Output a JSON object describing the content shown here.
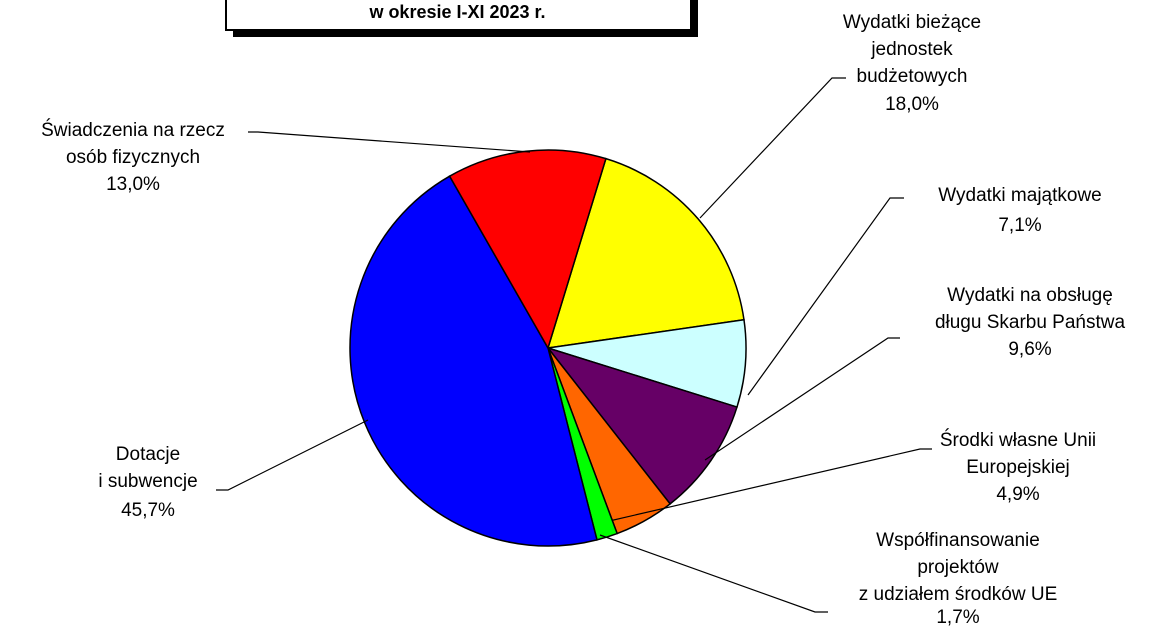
{
  "chart_data": {
    "type": "pie",
    "title": "w okresie I-XI 2023 r.",
    "categories": [
      "Wydatki bieżące\njednostek\nbudżetowych",
      "Wydatki majątkowe",
      "Wydatki na obsługę\ndługu Skarbu Państwa",
      "Środki własne Unii\nEuropejskiej",
      "Współfinansowanie\nprojektów\nz udziałem środków UE",
      "Dotacje\ni subwencje",
      "Świadczenia na rzecz\nosób fizycznych"
    ],
    "values": [
      18.0,
      7.1,
      9.6,
      4.9,
      1.7,
      45.7,
      13.0
    ],
    "value_labels": [
      "18,0%",
      "7,1%",
      "9,6%",
      "4,9%",
      "1,7%",
      "45,7%",
      "13,0%"
    ],
    "colors": [
      "#ffff00",
      "#ccffff",
      "#660066",
      "#ff6600",
      "#00ff00",
      "#0000ff",
      "#ff0000"
    ]
  }
}
